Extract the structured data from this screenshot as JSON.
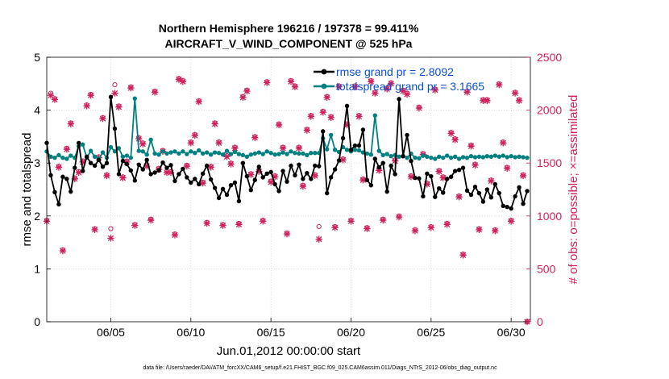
{
  "colors": {
    "rmse": "#000000",
    "spread": "#00807f",
    "obs": "#d11f5c",
    "legend_text": "#0a4fd4"
  },
  "chart_data": {
    "type": "line",
    "title_line1": "Northern Hemisphere 196216 / 197378 = 99.411%",
    "title_line2": "AIRCRAFT_V_WIND_COMPONENT @ 525 hPa",
    "xlabel": "Jun.01,2012 00:00:00 start",
    "ylabel_left": "rmse and totalspread",
    "ylabel_right": "# of obs: o=possible; ×=assimilated",
    "footnote": "data file: /Users/raeder/DAI/ATM_forcXX/CAM6_setup/f.e21.FHIST_BGC.f09_025.CAM6assim.011/Diags_NTrS_2012-06/obs_diag_output.nc",
    "xlim": [
      1,
      31.2
    ],
    "ylim_left": [
      0,
      5
    ],
    "ylim_right": [
      0,
      2500
    ],
    "x_ticks": [
      5,
      10,
      15,
      20,
      25,
      30
    ],
    "x_tick_labels": [
      "06/05",
      "06/10",
      "06/15",
      "06/20",
      "06/25",
      "06/30"
    ],
    "y_ticks_left": [
      0,
      1,
      2,
      3,
      4,
      5
    ],
    "y_tick_labels_left": [
      "0",
      "1",
      "2",
      "3",
      "4",
      "5"
    ],
    "y_ticks_right": [
      0,
      500,
      1000,
      1500,
      2000,
      2500
    ],
    "y_tick_labels_right": [
      "0",
      "500",
      "1000",
      "1500",
      "2000",
      "2500"
    ],
    "legend": {
      "placement": "top-right",
      "entries": [
        "rmse grand pr = 2.8092",
        "totalspread grand pr = 3.1665"
      ]
    },
    "series": [
      {
        "name": "rmse",
        "color": "#000000",
        "x": [
          1.0,
          1.25,
          1.5,
          1.75,
          2.0,
          2.25,
          2.5,
          2.75,
          3.0,
          3.25,
          3.5,
          3.75,
          4.0,
          4.25,
          4.5,
          4.75,
          5.0,
          5.25,
          5.5,
          5.75,
          6.0,
          6.25,
          6.5,
          6.75,
          7.0,
          7.25,
          7.5,
          7.75,
          8.0,
          8.25,
          8.5,
          8.75,
          9.0,
          9.25,
          9.5,
          9.75,
          10.0,
          10.25,
          10.5,
          10.75,
          11.0,
          11.25,
          11.5,
          11.75,
          12.0,
          12.25,
          12.5,
          12.75,
          13.0,
          13.25,
          13.5,
          13.75,
          14.0,
          14.25,
          14.5,
          14.75,
          15.0,
          15.25,
          15.5,
          15.75,
          16.0,
          16.25,
          16.5,
          16.75,
          17.0,
          17.25,
          17.5,
          17.75,
          18.0,
          18.25,
          18.5,
          18.75,
          19.0,
          19.25,
          19.5,
          19.75,
          20.0,
          20.25,
          20.5,
          20.75,
          21.0,
          21.25,
          21.5,
          21.75,
          22.0,
          22.25,
          22.5,
          22.75,
          23.0,
          23.25,
          23.5,
          23.75,
          24.0,
          24.25,
          24.5,
          24.75,
          25.0,
          25.25,
          25.5,
          25.75,
          26.0,
          26.25,
          26.5,
          26.75,
          27.0,
          27.25,
          27.5,
          27.75,
          28.0,
          28.25,
          28.5,
          28.75,
          29.0,
          29.25,
          29.5,
          29.75,
          30.0,
          30.25,
          30.5,
          30.75,
          31.0
        ],
        "values": [
          3.38,
          2.77,
          2.45,
          2.22,
          2.74,
          2.7,
          2.46,
          2.91,
          3.38,
          2.85,
          3.12,
          3.0,
          2.95,
          3.06,
          2.93,
          3.0,
          4.25,
          3.65,
          2.79,
          3.04,
          2.98,
          2.86,
          2.67,
          2.97,
          2.88,
          3.06,
          2.79,
          2.82,
          2.86,
          3.01,
          2.91,
          2.96,
          2.66,
          2.79,
          2.89,
          2.73,
          2.63,
          2.7,
          2.6,
          2.8,
          2.95,
          2.69,
          2.53,
          2.34,
          2.51,
          2.4,
          2.58,
          2.63,
          2.28,
          3.0,
          2.75,
          2.49,
          2.68,
          2.93,
          2.73,
          2.8,
          2.83,
          2.6,
          2.47,
          2.85,
          2.65,
          2.95,
          2.77,
          2.97,
          2.7,
          2.81,
          2.7,
          2.95,
          2.94,
          3.6,
          2.43,
          2.73,
          2.88,
          3.05,
          3.47,
          4.08,
          3.25,
          3.33,
          3.33,
          3.63,
          2.68,
          2.58,
          3.08,
          2.92,
          3.0,
          2.46,
          2.95,
          2.79,
          4.21,
          3.13,
          3.53,
          3.04,
          2.72,
          2.71,
          2.37,
          2.8,
          2.75,
          2.36,
          2.52,
          2.44,
          2.7,
          2.74,
          2.85,
          2.87,
          2.91,
          2.48,
          2.4,
          2.55,
          2.43,
          2.27,
          2.5,
          2.35,
          2.6,
          2.43,
          2.19,
          2.17,
          2.14,
          2.37,
          2.54,
          2.23,
          2.47
        ]
      },
      {
        "name": "totalspread",
        "color": "#00807f",
        "x": [
          1.0,
          1.25,
          1.5,
          1.75,
          2.0,
          2.25,
          2.5,
          2.75,
          3.0,
          3.25,
          3.5,
          3.75,
          4.0,
          4.25,
          4.5,
          4.75,
          5.0,
          5.25,
          5.5,
          5.75,
          6.0,
          6.25,
          6.5,
          6.75,
          7.0,
          7.25,
          7.5,
          7.75,
          8.0,
          8.25,
          8.5,
          8.75,
          9.0,
          9.25,
          9.5,
          9.75,
          10.0,
          10.25,
          10.5,
          10.75,
          11.0,
          11.25,
          11.5,
          11.75,
          12.0,
          12.25,
          12.5,
          12.75,
          13.0,
          13.25,
          13.5,
          13.75,
          14.0,
          14.25,
          14.5,
          14.75,
          15.0,
          15.25,
          15.5,
          15.75,
          16.0,
          16.25,
          16.5,
          16.75,
          17.0,
          17.25,
          17.5,
          17.75,
          18.0,
          18.25,
          18.5,
          18.75,
          19.0,
          19.25,
          19.5,
          19.75,
          20.0,
          20.25,
          20.5,
          20.75,
          21.0,
          21.25,
          21.5,
          21.75,
          22.0,
          22.25,
          22.5,
          22.75,
          23.0,
          23.25,
          23.5,
          23.75,
          24.0,
          24.25,
          24.5,
          24.75,
          25.0,
          25.25,
          25.5,
          25.75,
          26.0,
          26.25,
          26.5,
          26.75,
          27.0,
          27.25,
          27.5,
          27.75,
          28.0,
          28.25,
          28.5,
          28.75,
          29.0,
          29.25,
          29.5,
          29.75,
          30.0,
          30.25,
          30.5,
          30.75,
          31.0
        ],
        "values": [
          3.22,
          3.12,
          3.1,
          3.15,
          3.1,
          3.08,
          3.14,
          3.1,
          3.32,
          3.35,
          3.1,
          3.23,
          3.12,
          3.08,
          3.2,
          3.1,
          3.3,
          3.22,
          3.28,
          3.12,
          3.14,
          3.1,
          4.22,
          3.23,
          3.22,
          3.16,
          3.44,
          3.18,
          3.16,
          3.22,
          3.18,
          3.2,
          3.22,
          3.18,
          3.22,
          3.17,
          3.22,
          3.19,
          3.24,
          3.18,
          3.2,
          3.16,
          3.2,
          3.19,
          3.16,
          3.23,
          3.17,
          3.21,
          3.17,
          3.15,
          3.12,
          3.16,
          3.18,
          3.2,
          3.17,
          3.22,
          3.19,
          3.16,
          3.17,
          3.2,
          3.17,
          3.22,
          3.19,
          3.18,
          3.18,
          3.15,
          3.19,
          3.19,
          3.19,
          3.47,
          3.26,
          3.53,
          3.25,
          3.21,
          3.3,
          3.25,
          3.22,
          3.25,
          3.24,
          3.2,
          3.18,
          3.16,
          3.9,
          3.23,
          3.15,
          3.17,
          3.13,
          3.15,
          3.12,
          3.13,
          3.1,
          3.18,
          3.1,
          3.09,
          3.14,
          3.12,
          3.1,
          3.08,
          3.12,
          3.1,
          3.14,
          3.1,
          3.12,
          3.08,
          3.11,
          3.1,
          3.13,
          3.11,
          3.12,
          3.11,
          3.13,
          3.12,
          3.14,
          3.12,
          3.14,
          3.11,
          3.13,
          3.11,
          3.12,
          3.11,
          3.1
        ]
      },
      {
        "name": "obs_possible",
        "color": "#d11f5c",
        "marker": "o",
        "x": [
          1.0,
          1.25,
          1.5,
          1.75,
          2.0,
          2.25,
          2.5,
          2.75,
          3.0,
          3.25,
          3.5,
          3.75,
          4.0,
          4.25,
          4.5,
          4.75,
          5.0,
          5.25,
          5.5,
          5.75,
          6.0,
          6.25,
          6.5,
          6.75,
          7.0,
          7.25,
          7.5,
          7.75,
          8.0,
          8.25,
          8.5,
          8.75,
          9.0,
          9.25,
          9.5,
          9.75,
          10.0,
          10.25,
          10.5,
          10.75,
          11.0,
          11.25,
          11.5,
          11.75,
          12.0,
          12.25,
          12.5,
          12.75,
          13.0,
          13.25,
          13.5,
          13.75,
          14.0,
          14.25,
          14.5,
          14.75,
          15.0,
          15.25,
          15.5,
          15.75,
          16.0,
          16.25,
          16.5,
          16.75,
          17.0,
          17.25,
          17.5,
          17.75,
          18.0,
          18.25,
          18.5,
          18.75,
          19.0,
          19.25,
          19.5,
          19.75,
          20.0,
          20.25,
          20.5,
          20.75,
          21.0,
          21.25,
          21.5,
          21.75,
          22.0,
          22.25,
          22.5,
          22.75,
          23.0,
          23.25,
          23.5,
          23.75,
          24.0,
          24.25,
          24.5,
          24.75,
          25.0,
          25.25,
          25.5,
          25.75,
          26.0,
          26.25,
          26.5,
          26.75,
          27.0,
          27.25,
          27.5,
          27.75,
          28.0,
          28.25,
          28.5,
          28.75,
          29.0,
          29.25,
          29.5,
          29.75,
          30.0,
          30.25,
          30.5,
          30.75,
          31.0
        ],
        "values": [
          960,
          2160,
          2110,
          1470,
          680,
          1640,
          1880,
          1360,
          1420,
          1520,
          2050,
          2150,
          880,
          1560,
          1930,
          1390,
          880,
          2240,
          2040,
          1370,
          1520,
          2220,
          920,
          1740,
          1690,
          1480,
          970,
          2180,
          1450,
          1620,
          1420,
          1420,
          830,
          2300,
          2280,
          1480,
          1700,
          1770,
          2090,
          1320,
          940,
          1470,
          1880,
          1700,
          920,
          1570,
          1500,
          1650,
          930,
          2130,
          2190,
          1400,
          1750,
          1430,
          960,
          2270,
          1330,
          1380,
          1870,
          1650,
          840,
          2280,
          2230,
          1650,
          1290,
          1820,
          1950,
          1390,
          900,
          1990,
          2130,
          1940,
          900,
          2230,
          1540,
          1870,
          960,
          2230,
          1950,
          1350,
          890,
          2280,
          2170,
          1440,
          970,
          2210,
          2260,
          1530,
          1000,
          2190,
          2160,
          1380,
          870,
          2030,
          1590,
          1310,
          900,
          2200,
          1430,
          1370,
          930,
          1790,
          1730,
          1190,
          640,
          2180,
          1670,
          1490,
          880,
          2100,
          2100,
          1340,
          870,
          2250,
          1700,
          1460,
          960,
          2170,
          2100,
          1390,
          0
        ]
      },
      {
        "name": "obs_assimilated",
        "color": "#d11f5c",
        "marker": "x",
        "x": [
          1.0,
          1.25,
          1.5,
          1.75,
          2.0,
          2.25,
          2.5,
          2.75,
          3.0,
          3.25,
          3.5,
          3.75,
          4.0,
          4.25,
          4.5,
          4.75,
          5.0,
          5.25,
          5.5,
          5.75,
          6.0,
          6.25,
          6.5,
          6.75,
          7.0,
          7.25,
          7.5,
          7.75,
          8.0,
          8.25,
          8.5,
          8.75,
          9.0,
          9.25,
          9.5,
          9.75,
          10.0,
          10.25,
          10.5,
          10.75,
          11.0,
          11.25,
          11.5,
          11.75,
          12.0,
          12.25,
          12.5,
          12.75,
          13.0,
          13.25,
          13.5,
          13.75,
          14.0,
          14.25,
          14.5,
          14.75,
          15.0,
          15.25,
          15.5,
          15.75,
          16.0,
          16.25,
          16.5,
          16.75,
          17.0,
          17.25,
          17.5,
          17.75,
          18.0,
          18.25,
          18.5,
          18.75,
          19.0,
          19.25,
          19.5,
          19.75,
          20.0,
          20.25,
          20.5,
          20.75,
          21.0,
          21.25,
          21.5,
          21.75,
          22.0,
          22.25,
          22.5,
          22.75,
          23.0,
          23.25,
          23.5,
          23.75,
          24.0,
          24.25,
          24.5,
          24.75,
          25.0,
          25.25,
          25.5,
          25.75,
          26.0,
          26.25,
          26.5,
          26.75,
          27.0,
          27.25,
          27.5,
          27.75,
          28.0,
          28.25,
          28.5,
          28.75,
          29.0,
          29.25,
          29.5,
          29.75,
          30.0,
          30.25,
          30.5,
          30.75,
          31.0
        ],
        "values": [
          950,
          2140,
          2100,
          1460,
          670,
          1630,
          1870,
          1350,
          1410,
          1510,
          2040,
          2140,
          870,
          1550,
          1920,
          1380,
          790,
          2160,
          2030,
          1360,
          1510,
          2210,
          910,
          1730,
          1680,
          1470,
          960,
          2170,
          1440,
          1610,
          1410,
          1410,
          820,
          2290,
          2270,
          1470,
          1690,
          1760,
          2080,
          1310,
          930,
          1460,
          1870,
          1690,
          910,
          1560,
          1490,
          1640,
          920,
          2120,
          2180,
          1390,
          1740,
          1420,
          950,
          2260,
          1320,
          1370,
          1860,
          1640,
          830,
          2270,
          2220,
          1640,
          1280,
          1810,
          1940,
          1380,
          780,
          1980,
          2120,
          1930,
          890,
          2220,
          1530,
          1860,
          950,
          2220,
          1940,
          1340,
          880,
          2270,
          2160,
          1430,
          960,
          2200,
          2250,
          1520,
          990,
          2180,
          2150,
          1370,
          860,
          2020,
          1580,
          1300,
          890,
          2190,
          1420,
          1360,
          920,
          1780,
          1720,
          1180,
          630,
          2170,
          1660,
          1480,
          870,
          2090,
          2090,
          1330,
          860,
          2240,
          1690,
          1450,
          950,
          2160,
          2090,
          1380,
          0
        ]
      }
    ]
  }
}
